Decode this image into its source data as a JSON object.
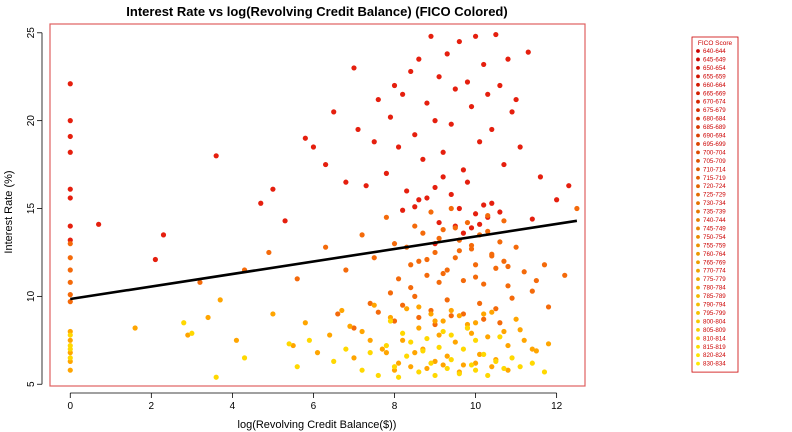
{
  "chart_data": {
    "type": "scatter",
    "title": "Interest Rate vs log(Revolving Credit Balance) (FICO Colored)",
    "xlabel": "log(Revolving Credit Balance($))",
    "ylabel": "Interest Rate (%)",
    "xlim": [
      -0.5,
      12.7
    ],
    "ylim": [
      4.9,
      25.5
    ],
    "xticks": [
      0,
      2,
      4,
      6,
      8,
      10,
      12
    ],
    "yticks": [
      5,
      10,
      15,
      20,
      25
    ],
    "grid": false,
    "legend_position": "right",
    "legend": {
      "title": "FICO Score",
      "entries": [
        "640-644",
        "645-649",
        "650-654",
        "655-659",
        "660-664",
        "665-669",
        "670-674",
        "675-679",
        "680-684",
        "685-689",
        "690-694",
        "695-699",
        "700-704",
        "705-709",
        "710-714",
        "715-719",
        "720-724",
        "725-729",
        "730-734",
        "735-739",
        "740-744",
        "745-749",
        "750-754",
        "755-759",
        "760-764",
        "765-769",
        "770-774",
        "775-779",
        "780-784",
        "785-789",
        "790-794",
        "795-799",
        "800-804",
        "805-809",
        "810-814",
        "815-819",
        "820-824",
        "830-834"
      ]
    },
    "regression_line": {
      "x": [
        0,
        12.5
      ],
      "y": [
        9.85,
        14.3
      ],
      "color": "#000000"
    },
    "frame_color": "#e06060",
    "series": [
      {
        "x": [
          0,
          0,
          0,
          0,
          0,
          0,
          0,
          0,
          0.7,
          2.1,
          2.3,
          3.6,
          4.7,
          5.0,
          5.3,
          5.8,
          6.0,
          6.3,
          6.5,
          6.8,
          7.0,
          7.1,
          7.3,
          7.5,
          7.6,
          7.8,
          7.9,
          8.0,
          8.1,
          8.2,
          8.3,
          8.4,
          8.5,
          8.6,
          8.7,
          8.8,
          8.9,
          9.0,
          9.1,
          9.2,
          9.3,
          9.4,
          9.5,
          9.6,
          9.7,
          9.8,
          9.9,
          10.0,
          10.1,
          10.2,
          10.3,
          10.4,
          10.5,
          10.6,
          10.7,
          10.8,
          10.9,
          11.0,
          11.1,
          11.3,
          11.6,
          12.0,
          12.3,
          8.6,
          9.0,
          9.4,
          9.8,
          10.2,
          10.6,
          8.2,
          8.8,
          9.2,
          9.6,
          10.0,
          10.4,
          9.1,
          9.5,
          9.9,
          10.3,
          9.0,
          9.7,
          10.1,
          8.5,
          11.4
        ],
        "y": [
          22.1,
          20.0,
          19.1,
          18.2,
          16.1,
          15.6,
          14.0,
          13.2,
          14.1,
          12.1,
          13.5,
          18.0,
          15.3,
          16.1,
          14.3,
          19.0,
          18.5,
          17.5,
          20.5,
          16.5,
          23.0,
          19.5,
          16.3,
          18.8,
          21.2,
          17.0,
          20.2,
          22.0,
          18.5,
          21.5,
          16.0,
          22.8,
          19.2,
          23.5,
          17.8,
          21.0,
          24.8,
          20.0,
          22.5,
          18.2,
          23.8,
          19.8,
          21.8,
          24.5,
          17.2,
          22.2,
          20.8,
          24.8,
          18.8,
          23.2,
          21.5,
          19.5,
          24.9,
          22.0,
          17.5,
          23.5,
          20.5,
          21.2,
          18.5,
          23.9,
          16.8,
          15.5,
          16.3,
          15.5,
          16.2,
          15.8,
          16.5,
          15.2,
          14.8,
          14.9,
          15.6,
          16.8,
          15.0,
          14.7,
          15.3,
          14.2,
          14.0,
          13.9,
          14.5,
          13.0,
          13.6,
          14.1,
          15.1,
          14.4
        ],
        "color": "#e51f0e",
        "name": ""
      },
      {
        "x": [
          0,
          0,
          0,
          0,
          0,
          0,
          3.2,
          4.3,
          4.9,
          5.6,
          6.3,
          6.8,
          7.2,
          7.5,
          7.8,
          8.0,
          8.1,
          8.3,
          8.4,
          8.5,
          8.6,
          8.7,
          8.8,
          8.9,
          9.0,
          9.1,
          9.2,
          9.3,
          9.4,
          9.5,
          9.6,
          9.7,
          9.8,
          9.9,
          10.0,
          10.1,
          10.2,
          10.3,
          10.4,
          10.5,
          10.6,
          10.7,
          10.8,
          11.0,
          11.2,
          11.5,
          11.7,
          12.5,
          7.9,
          8.2,
          8.5,
          8.9,
          9.3,
          9.7,
          10.1,
          10.5,
          10.9,
          8.6,
          9.0,
          9.4,
          9.8,
          10.2,
          10.6,
          8.4,
          8.8,
          9.2,
          9.6,
          10.0,
          10.4,
          10.8,
          7.6,
          8.0,
          11.4,
          11.8,
          12.2,
          6.6,
          7.0,
          7.4,
          9.1,
          9.5,
          9.9,
          10.3,
          10.7
        ],
        "y": [
          13.0,
          12.2,
          11.5,
          10.8,
          10.1,
          9.7,
          10.8,
          11.5,
          12.5,
          11.0,
          12.8,
          11.5,
          13.5,
          12.2,
          14.5,
          13.0,
          11.0,
          12.8,
          10.5,
          14.0,
          12.0,
          13.6,
          11.2,
          14.8,
          12.5,
          10.8,
          13.8,
          11.5,
          15.0,
          12.2,
          13.2,
          10.9,
          14.2,
          12.7,
          11.8,
          13.5,
          10.7,
          14.6,
          12.4,
          11.6,
          13.1,
          12.0,
          10.6,
          12.8,
          11.4,
          10.9,
          11.8,
          15.0,
          10.2,
          9.5,
          10.0,
          9.2,
          9.8,
          9.0,
          9.6,
          9.3,
          9.9,
          8.8,
          8.4,
          8.9,
          8.2,
          8.7,
          8.5,
          11.8,
          12.1,
          11.3,
          12.6,
          11.1,
          12.3,
          11.7,
          9.1,
          8.6,
          10.3,
          9.4,
          11.2,
          9.0,
          8.2,
          9.6,
          13.3,
          13.9,
          12.9,
          13.7,
          14.3
        ],
        "color": "#f46a0a",
        "name": ""
      },
      {
        "x": [
          0,
          0,
          0,
          0,
          0,
          1.6,
          2.9,
          3.4,
          3.7,
          4.1,
          5.0,
          5.5,
          5.8,
          6.1,
          6.4,
          6.7,
          7.0,
          7.2,
          7.5,
          7.7,
          7.9,
          8.1,
          8.2,
          8.3,
          8.5,
          8.6,
          8.7,
          8.9,
          9.0,
          9.1,
          9.2,
          9.3,
          9.5,
          9.6,
          9.7,
          9.9,
          10.0,
          10.1,
          10.3,
          10.4,
          10.5,
          10.7,
          10.8,
          11.0,
          11.2,
          11.5,
          11.8,
          8.0,
          8.4,
          8.8,
          9.2,
          9.6,
          10.0,
          10.4,
          10.8,
          7.4,
          7.8,
          11.1,
          11.4,
          6.9,
          9.4,
          9.8,
          10.2,
          8.6,
          9.0
        ],
        "y": [
          8.0,
          7.5,
          6.8,
          6.3,
          5.8,
          8.2,
          7.8,
          8.8,
          9.8,
          7.5,
          9.0,
          7.2,
          8.5,
          6.8,
          7.8,
          9.2,
          6.5,
          8.0,
          9.5,
          7.0,
          8.8,
          6.2,
          7.5,
          9.3,
          6.8,
          8.2,
          7.0,
          9.0,
          6.3,
          7.8,
          8.6,
          6.6,
          7.4,
          8.9,
          6.1,
          7.9,
          8.5,
          6.7,
          7.7,
          9.1,
          6.4,
          8.0,
          7.2,
          8.7,
          7.5,
          6.9,
          7.3,
          5.8,
          6.0,
          5.9,
          6.1,
          5.7,
          6.2,
          6.0,
          5.8,
          7.5,
          6.8,
          8.1,
          7.0,
          8.3,
          9.2,
          8.4,
          9.0,
          9.4,
          8.6
        ],
        "color": "#ffa500",
        "name": ""
      },
      {
        "x": [
          0,
          0,
          0,
          0,
          2.8,
          3.0,
          3.6,
          4.3,
          5.4,
          5.6,
          5.9,
          6.5,
          6.8,
          7.2,
          7.4,
          7.6,
          7.8,
          8.0,
          8.1,
          8.3,
          8.4,
          8.6,
          8.7,
          8.9,
          9.0,
          9.1,
          9.3,
          9.4,
          9.6,
          9.7,
          9.9,
          10.0,
          10.2,
          10.3,
          10.5,
          10.7,
          10.9,
          11.1,
          11.4,
          11.7,
          8.2,
          8.8,
          9.4,
          10.0,
          10.6,
          7.9,
          9.2,
          9.8
        ],
        "y": [
          7.2,
          7.0,
          6.5,
          7.8,
          8.5,
          7.9,
          5.4,
          6.5,
          7.3,
          6.0,
          7.5,
          6.3,
          7.0,
          5.8,
          6.8,
          5.5,
          7.2,
          6.0,
          5.4,
          6.6,
          7.4,
          5.7,
          6.9,
          6.2,
          5.5,
          7.1,
          5.9,
          6.4,
          5.6,
          7.0,
          6.1,
          5.8,
          6.7,
          5.5,
          6.3,
          5.9,
          6.5,
          6.0,
          6.2,
          5.7,
          7.9,
          7.6,
          7.8,
          7.5,
          7.7,
          8.6,
          8.0,
          8.2
        ],
        "color": "#ffd800",
        "name": ""
      }
    ]
  }
}
